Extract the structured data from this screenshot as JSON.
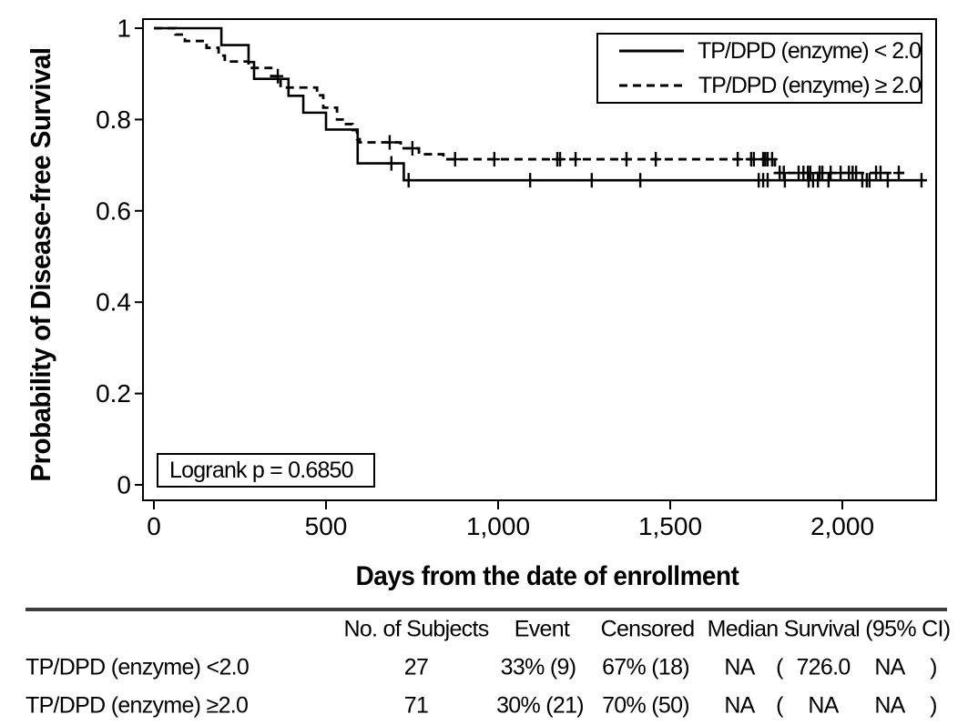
{
  "colors": {
    "line": "#000000",
    "background": "#ffffff",
    "table_rule": "#3c3c3c"
  },
  "chart_data": {
    "type": "line",
    "subtype": "kaplan-meier-step",
    "title": "",
    "xlabel": "Days from the date of enrollment",
    "ylabel": "Probability of Disease-free Survival",
    "xlim": [
      0,
      2272
    ],
    "ylim": [
      0,
      1
    ],
    "grid": false,
    "x_ticks": [
      0,
      500,
      1000,
      1500,
      2000
    ],
    "x_tick_labels": [
      "0",
      "500",
      "1,000",
      "1,500",
      "2,000"
    ],
    "y_ticks": [
      1,
      0.8,
      0.6,
      0.4,
      0.2,
      0
    ],
    "y_tick_labels": [
      "1",
      "0.8",
      "0.6",
      "0.4",
      "0.2",
      "0"
    ],
    "annotation": "Logrank p = 0.6850",
    "legend": {
      "position": "top-right"
    },
    "series": [
      {
        "name": "TP/DPD (enzyme) < 2.0",
        "style": "solid",
        "start": [
          0,
          1.0
        ],
        "end_day": 2245,
        "drops": [
          [
            196,
            0.963
          ],
          [
            275,
            0.926
          ],
          [
            291,
            0.889
          ],
          [
            391,
            0.852
          ],
          [
            434,
            0.815
          ],
          [
            500,
            0.778
          ],
          [
            592,
            0.704
          ],
          [
            726,
            0.667
          ]
        ],
        "censors": [
          [
            690,
            0.704
          ],
          [
            740,
            0.667
          ],
          [
            1093,
            0.667
          ],
          [
            1272,
            0.667
          ],
          [
            1413,
            0.667
          ],
          [
            1757,
            0.667
          ],
          [
            1770,
            0.667
          ],
          [
            1783,
            0.667
          ],
          [
            1833,
            0.667
          ],
          [
            1902,
            0.667
          ],
          [
            1915,
            0.667
          ],
          [
            1929,
            0.667
          ],
          [
            1960,
            0.667
          ],
          [
            2058,
            0.667
          ],
          [
            2071,
            0.667
          ],
          [
            2079,
            0.667
          ],
          [
            2132,
            0.667
          ],
          [
            2230,
            0.667
          ]
        ]
      },
      {
        "name": "TP/DPD (enzyme) ≥ 2.0",
        "style": "dashed",
        "start": [
          0,
          1.0
        ],
        "end_day": 2180,
        "drops": [
          [
            63,
            0.986
          ],
          [
            90,
            0.972
          ],
          [
            153,
            0.957
          ],
          [
            188,
            0.94
          ],
          [
            206,
            0.927
          ],
          [
            275,
            0.913
          ],
          [
            341,
            0.895
          ],
          [
            368,
            0.87
          ],
          [
            474,
            0.853
          ],
          [
            492,
            0.826
          ],
          [
            532,
            0.8
          ],
          [
            553,
            0.79
          ],
          [
            577,
            0.777
          ],
          [
            590,
            0.757
          ],
          [
            598,
            0.75
          ],
          [
            717,
            0.737
          ],
          [
            770,
            0.724
          ],
          [
            841,
            0.713
          ],
          [
            1804,
            0.683
          ]
        ],
        "censors": [
          [
            360,
            0.895
          ],
          [
            685,
            0.75
          ],
          [
            751,
            0.737
          ],
          [
            875,
            0.713
          ],
          [
            989,
            0.713
          ],
          [
            1172,
            0.713
          ],
          [
            1180,
            0.713
          ],
          [
            1225,
            0.713
          ],
          [
            1373,
            0.713
          ],
          [
            1458,
            0.713
          ],
          [
            1696,
            0.713
          ],
          [
            1735,
            0.713
          ],
          [
            1743,
            0.713
          ],
          [
            1770,
            0.713
          ],
          [
            1776,
            0.713
          ],
          [
            1783,
            0.713
          ],
          [
            1796,
            0.713
          ],
          [
            1818,
            0.683
          ],
          [
            1830,
            0.683
          ],
          [
            1873,
            0.683
          ],
          [
            1887,
            0.683
          ],
          [
            1900,
            0.683
          ],
          [
            1907,
            0.683
          ],
          [
            1934,
            0.683
          ],
          [
            1942,
            0.683
          ],
          [
            1966,
            0.683
          ],
          [
            1995,
            0.683
          ],
          [
            2019,
            0.683
          ],
          [
            2030,
            0.683
          ],
          [
            2040,
            0.683
          ],
          [
            2098,
            0.683
          ],
          [
            2111,
            0.683
          ],
          [
            2164,
            0.683
          ]
        ]
      }
    ]
  },
  "table": {
    "headers": [
      "No. of Subjects",
      "Event",
      "Censored",
      "Median Survival (95% CI)"
    ],
    "rows": [
      {
        "label": "TP/DPD (enzyme) <2.0",
        "subjects": "27",
        "event": "33% (9)",
        "censored": "67% (18)",
        "median": "NA",
        "ci_open": "(",
        "ci_low": "726.0",
        "ci_high": "NA",
        "ci_close": ")"
      },
      {
        "label": "TP/DPD (enzyme) ≥2.0",
        "subjects": "71",
        "event": "30% (21)",
        "censored": "70% (50)",
        "median": "NA",
        "ci_open": "(",
        "ci_low": "NA",
        "ci_high": "NA",
        "ci_close": ")"
      }
    ]
  }
}
